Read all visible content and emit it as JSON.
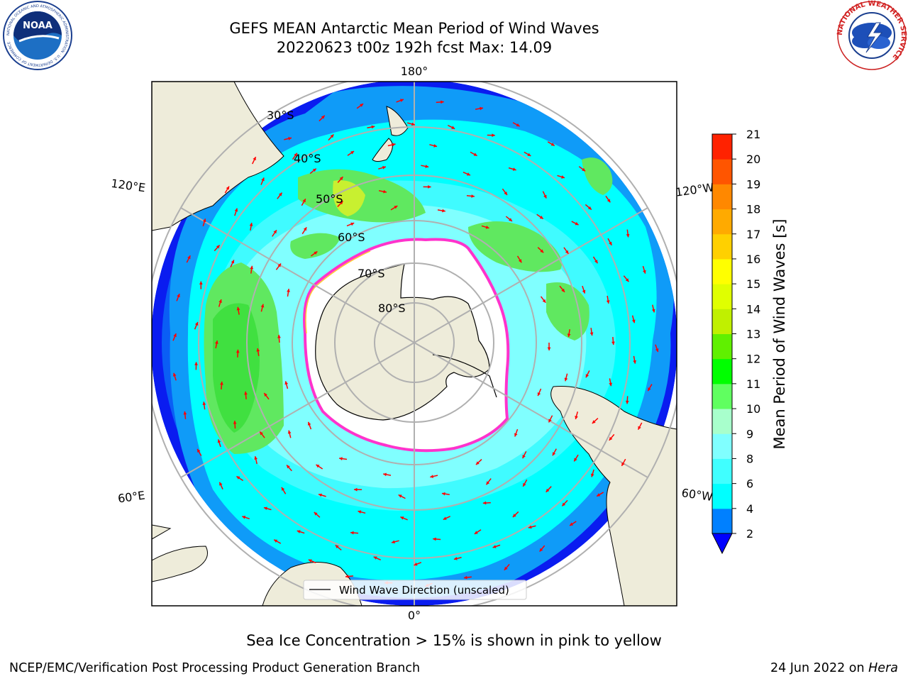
{
  "header": {
    "title_line1": "GEFS MEAN Antarctic Mean Period of Wind Waves",
    "title_line2": "20220623 t00z 192h fcst   Max: 14.09"
  },
  "logos": {
    "left": {
      "name": "noaa-logo",
      "text": "NOAA",
      "ring_text": "NATIONAL OCEANIC AND ATMOSPHERIC ADMINISTRATION · U.S. DEPARTMENT OF COMMERCE"
    },
    "right": {
      "name": "nws-logo",
      "ring_text": "NATIONAL WEATHER SERVICE"
    }
  },
  "map": {
    "projection": "south-polar-stereographic",
    "longitude_labels": {
      "top": "180°",
      "bottom": "0°",
      "left_upper": "120°E",
      "left_lower": "60°E",
      "right_upper": "120°W",
      "right_lower": "60°W"
    },
    "latitude_labels": [
      "30°S",
      "40°S",
      "50°S",
      "60°S",
      "70°S",
      "80°S"
    ],
    "legend_label": "Wind Wave Direction (unscaled)",
    "colors": {
      "land": "#eeecda",
      "sea_ice": "#ffffff",
      "ice_edge": "#ff33cc",
      "arrows": "#ff0000"
    }
  },
  "colorbar": {
    "label": "Mean Period of Wind Waves [s]",
    "ticks": [
      "2",
      "4",
      "6",
      "8",
      "9",
      "10",
      "11",
      "12",
      "13",
      "14",
      "15",
      "16",
      "17",
      "18",
      "19",
      "20",
      "21"
    ],
    "colors": [
      "#0000ff",
      "#0080ff",
      "#00ffff",
      "#40ffff",
      "#80ffff",
      "#a8ffcc",
      "#60ff60",
      "#00ff00",
      "#60f000",
      "#c0f000",
      "#e0ff00",
      "#ffff00",
      "#ffd000",
      "#ffaa00",
      "#ff8800",
      "#ff5500",
      "#ff2200",
      "#ff0000"
    ]
  },
  "caption": "Sea Ice Concentration > 15% is shown in pink to yellow",
  "footer": {
    "left": "NCEP/EMC/Verification Post Processing Product Generation Branch",
    "right_prefix": "24 Jun 2022 on ",
    "right_italic": "Hera"
  }
}
